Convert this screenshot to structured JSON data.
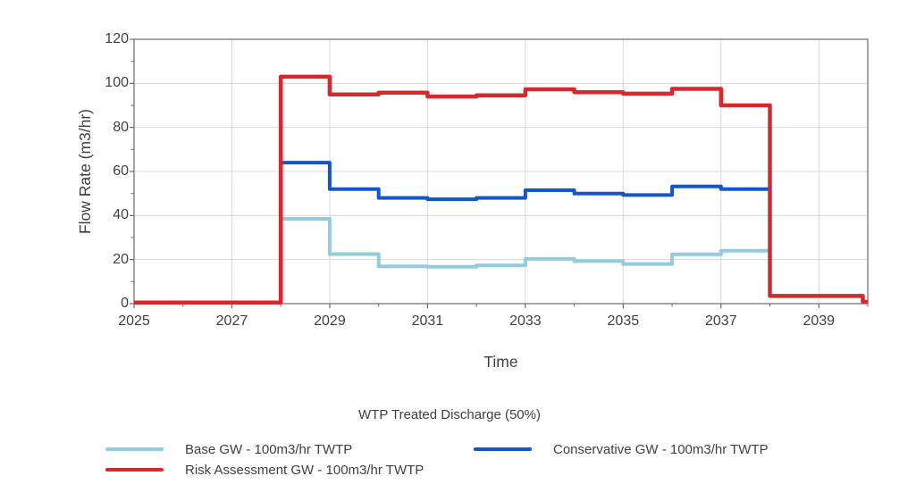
{
  "chart_data": {
    "type": "line",
    "subtype": "step",
    "title": "WTP Treated Discharge (50%)",
    "xlabel": "Time",
    "ylabel": "Flow Rate (m3/hr)",
    "xlim": [
      2025,
      2040
    ],
    "ylim": [
      0,
      120
    ],
    "x_major_ticks": [
      2025,
      2027,
      2029,
      2031,
      2033,
      2035,
      2037,
      2039
    ],
    "x_minor_ticks": [
      2026,
      2028,
      2030,
      2032,
      2034,
      2036,
      2038,
      2040
    ],
    "y_major_ticks": [
      0,
      20,
      40,
      60,
      80,
      100,
      120
    ],
    "y_minor_ticks": [
      10,
      30,
      50,
      70,
      90,
      110
    ],
    "grid": true,
    "legend_position": "bottom",
    "grid_color": "#d9d9d9",
    "frame_color": "#6a6a6a",
    "text_color": "#404040",
    "background_color": "#ffffff",
    "series": [
      {
        "key": "base",
        "name": "Base GW - 100m3/hr TWTP",
        "color": "#93cbe0",
        "width": 4,
        "end_x": 2038,
        "points": [
          [
            2025,
            0.5
          ],
          [
            2028,
            38.5
          ],
          [
            2029,
            22.5
          ],
          [
            2030,
            16.9
          ],
          [
            2031,
            16.7
          ],
          [
            2032,
            17.4
          ],
          [
            2033,
            20.3
          ],
          [
            2034,
            19.3
          ],
          [
            2035,
            18.0
          ],
          [
            2036,
            22.4
          ],
          [
            2037,
            24.0
          ]
        ]
      },
      {
        "key": "conservative",
        "name": "Conservative GW - 100m3/hr TWTP",
        "color": "#1356c9",
        "width": 4,
        "end_x": 2038,
        "points": [
          [
            2025,
            0.5
          ],
          [
            2028,
            64.0
          ],
          [
            2029,
            52.0
          ],
          [
            2030,
            48.0
          ],
          [
            2031,
            47.4
          ],
          [
            2032,
            48.0
          ],
          [
            2033,
            51.5
          ],
          [
            2034,
            50.0
          ],
          [
            2035,
            49.3
          ],
          [
            2036,
            53.2
          ],
          [
            2037,
            52.0
          ]
        ]
      },
      {
        "key": "risk",
        "name": "Risk Assessment GW - 100m3/hr TWTP",
        "color": "#d7282e",
        "width": 4.5,
        "end_x": 2040,
        "points": [
          [
            2025,
            0.5
          ],
          [
            2028,
            103.0
          ],
          [
            2029,
            95.0
          ],
          [
            2030,
            95.8
          ],
          [
            2031,
            94.0
          ],
          [
            2032,
            94.6
          ],
          [
            2033,
            97.3
          ],
          [
            2034,
            96.0
          ],
          [
            2035,
            95.3
          ],
          [
            2036,
            97.5
          ],
          [
            2037,
            90.0
          ],
          [
            2038,
            3.5
          ],
          [
            2039.9,
            0.8
          ]
        ]
      }
    ]
  },
  "legend": {
    "title": "WTP Treated Discharge (50%)"
  }
}
